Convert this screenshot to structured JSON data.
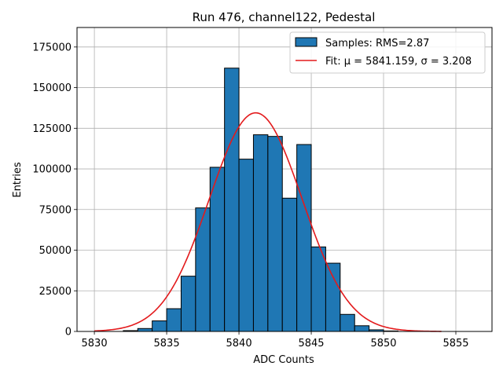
{
  "chart_data": {
    "type": "bar",
    "title": "Run 476, channel122, Pedestal",
    "xlabel": "ADC Counts",
    "ylabel": "Entries",
    "xlim": [
      5828.8,
      5857.5
    ],
    "ylim": [
      0,
      187000
    ],
    "xticks": [
      5830,
      5835,
      5840,
      5845,
      5850,
      5855
    ],
    "yticks": [
      0,
      25000,
      50000,
      75000,
      100000,
      125000,
      150000,
      175000
    ],
    "grid": true,
    "legend_position": "top-right",
    "histogram": {
      "name": "Samples: RMS=2.87",
      "color": "#1f77b4",
      "bin_width": 1,
      "bins": [
        {
          "x0": 5832,
          "count": 500
        },
        {
          "x0": 5833,
          "count": 1800
        },
        {
          "x0": 5834,
          "count": 6500
        },
        {
          "x0": 5835,
          "count": 14000
        },
        {
          "x0": 5836,
          "count": 34000
        },
        {
          "x0": 5837,
          "count": 76000
        },
        {
          "x0": 5838,
          "count": 101000
        },
        {
          "x0": 5839,
          "count": 162000
        },
        {
          "x0": 5840,
          "count": 106000
        },
        {
          "x0": 5841,
          "count": 121000
        },
        {
          "x0": 5842,
          "count": 120000
        },
        {
          "x0": 5843,
          "count": 82000
        },
        {
          "x0": 5844,
          "count": 115000
        },
        {
          "x0": 5845,
          "count": 52000
        },
        {
          "x0": 5846,
          "count": 42000
        },
        {
          "x0": 5847,
          "count": 10500
        },
        {
          "x0": 5848,
          "count": 3500
        },
        {
          "x0": 5849,
          "count": 1000
        },
        {
          "x0": 5850,
          "count": 300
        }
      ]
    },
    "fit": {
      "name": "Fit: μ = 5841.159, σ = 3.208",
      "color": "#e31a1c",
      "mu": 5841.159,
      "sigma": 3.208,
      "amplitude": 134500,
      "x_range": [
        5830,
        5854
      ]
    }
  }
}
